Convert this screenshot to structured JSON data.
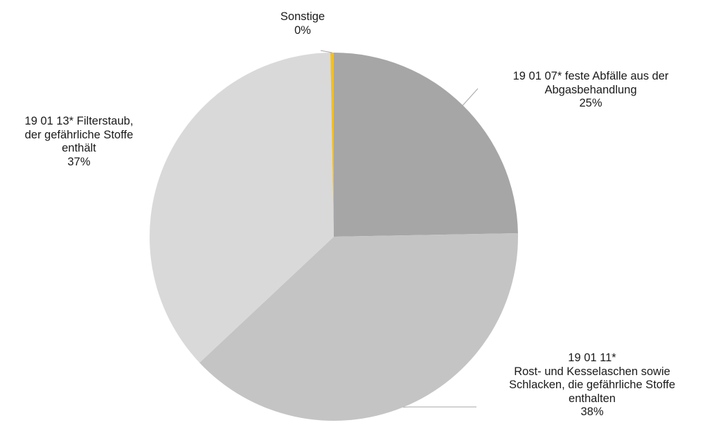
{
  "chart_data": {
    "type": "pie",
    "start_angle_deg": 0,
    "direction": "clockwise",
    "slices": [
      {
        "name_lines": [
          "19 01 07* feste Abfälle aus der",
          "Abgasbehandlung"
        ],
        "pct_label": "25%",
        "value": 24.7,
        "color": "#a6a6a6"
      },
      {
        "name_lines": [
          "19 01 11*",
          "Rost- und Kesselaschen sowie",
          "Schlacken, die gefährliche Stoffe",
          "enthalten"
        ],
        "pct_label": "38%",
        "value": 38.3,
        "color": "#c4c4c4"
      },
      {
        "name_lines": [
          "19 01 13* Filterstaub,",
          "der gefährliche Stoffe",
          "enthält"
        ],
        "pct_label": "37%",
        "value": 36.7,
        "color": "#d9d9d9"
      },
      {
        "name_lines": [
          "Sonstige"
        ],
        "pct_label": "0%",
        "value": 0.3,
        "color": "#f5c01d"
      }
    ],
    "leader_color": "#a6a6a6"
  }
}
